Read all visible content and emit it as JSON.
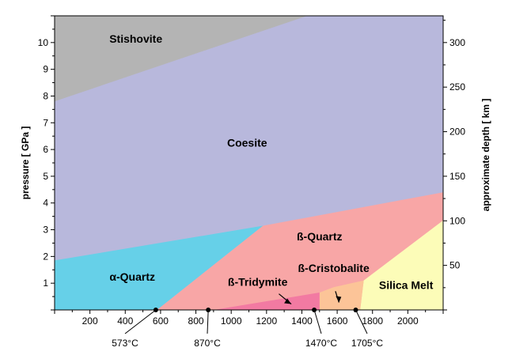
{
  "chart_data": {
    "type": "area",
    "title": "",
    "xlabel": "",
    "ylabel": "pressure [ GPa ]",
    "y2label": "approximate depth [ km ]",
    "xlim": [
      0,
      2200
    ],
    "ylim": [
      0,
      11
    ],
    "y2lim": [
      0,
      330
    ],
    "x_ticks": [
      200,
      400,
      600,
      800,
      1000,
      1200,
      1400,
      1600,
      1800,
      2000
    ],
    "y_ticks": [
      1,
      2,
      3,
      4,
      5,
      6,
      7,
      8,
      9,
      10
    ],
    "y2_ticks": [
      50,
      100,
      150,
      200,
      250,
      300
    ],
    "grid": false,
    "regions": [
      {
        "name": "Coesite",
        "color": "#b8b8dc",
        "label_at": [
          1090,
          6.1
        ],
        "polygon": [
          [
            0,
            0
          ],
          [
            2200,
            0
          ],
          [
            2200,
            11
          ],
          [
            0,
            11
          ]
        ]
      },
      {
        "name": "Stishovite",
        "color": "#b4b4b4",
        "label_at": [
          460,
          10.0
        ],
        "polygon": [
          [
            0,
            7.8
          ],
          [
            0,
            11
          ],
          [
            1430,
            11
          ]
        ]
      },
      {
        "name": "α-Quartz",
        "color": "#66d0e8",
        "label_at": [
          440,
          1.1
        ],
        "polygon": [
          [
            0,
            0
          ],
          [
            580,
            0
          ],
          [
            1180,
            3.15
          ],
          [
            0,
            1.85
          ]
        ]
      },
      {
        "name": "ß-Quartz",
        "color": "#f8a6a6",
        "label_at": [
          1500,
          2.6
        ],
        "polygon": [
          [
            580,
            0
          ],
          [
            2200,
            0
          ],
          [
            2200,
            4.4
          ],
          [
            1180,
            3.15
          ]
        ]
      },
      {
        "name": "Silica Melt",
        "color": "#fcfcb8",
        "label_at": [
          1990,
          0.78
        ],
        "polygon": [
          [
            1730,
            0
          ],
          [
            2200,
            0
          ],
          [
            2200,
            3.35
          ],
          [
            1750,
            1.1
          ]
        ]
      },
      {
        "name": "ß-Cristobalite",
        "color": "#fcc498",
        "label_at": [
          1580,
          1.42
        ],
        "polygon": [
          [
            1500,
            0
          ],
          [
            1730,
            0
          ],
          [
            1750,
            1.1
          ],
          [
            1580,
            0.85
          ],
          [
            1500,
            0.65
          ]
        ]
      },
      {
        "name": "ß-Tridymite",
        "color": "#f27aa2",
        "label_at": [
          1150,
          0.9
        ],
        "polygon": [
          [
            900,
            0
          ],
          [
            1500,
            0
          ],
          [
            1500,
            0.65
          ]
        ]
      }
    ],
    "boundary_points": [
      {
        "x": 573,
        "label": "573°C"
      },
      {
        "x": 870,
        "label": "870°C"
      },
      {
        "x": 1470,
        "label": "1470°C"
      },
      {
        "x": 1705,
        "label": "1705°C"
      }
    ]
  }
}
